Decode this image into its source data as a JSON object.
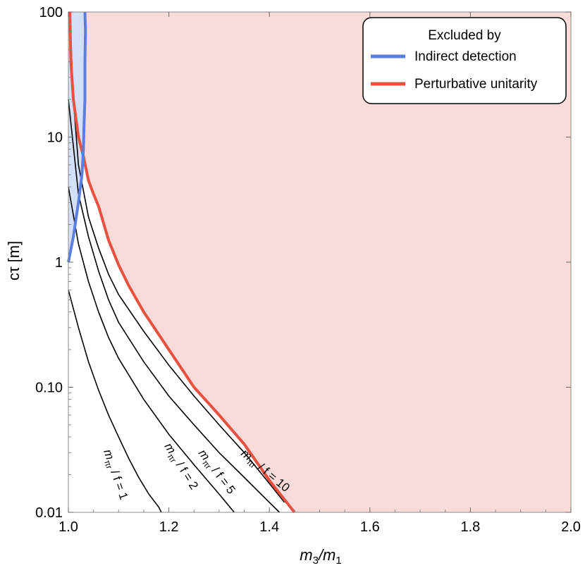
{
  "chart_data": {
    "type": "line",
    "xlabel_main": "m",
    "xlabel_sub1": "3",
    "xlabel_sep": "/m",
    "xlabel_sub2": "1",
    "ylabel": "cτ [m]",
    "x_scale": "linear",
    "y_scale": "log",
    "xlim": [
      1.0,
      2.0
    ],
    "ylim": [
      0.01,
      100
    ],
    "x_ticks": [
      1.0,
      1.2,
      1.4,
      1.6,
      1.8,
      2.0
    ],
    "x_tick_labels": [
      "1.0",
      "1.2",
      "1.4",
      "1.6",
      "1.8",
      "2.0"
    ],
    "y_ticks": [
      0.01,
      0.1,
      1,
      10,
      100
    ],
    "y_tick_labels": [
      "0.01",
      "0.10",
      "1",
      "10",
      "100"
    ],
    "grid": false,
    "legend": {
      "position": "top-right",
      "title": "Excluded by",
      "entries": [
        {
          "label": "Indirect detection",
          "color": "#5b7fe0"
        },
        {
          "label": "Perturbative unitarity",
          "color": "#e8503f"
        }
      ]
    },
    "regions": [
      {
        "excluded_by": "Perturbative unitarity",
        "fill": "#f9dbd9",
        "stroke": "#e8503f",
        "boundary": [
          [
            1.003,
            100
          ],
          [
            1.005,
            40
          ],
          [
            1.01,
            20
          ],
          [
            1.02,
            10
          ],
          [
            1.03,
            7
          ],
          [
            1.04,
            4.5
          ],
          [
            1.05,
            3.5
          ],
          [
            1.06,
            2.8
          ],
          [
            1.08,
            1.5
          ],
          [
            1.1,
            0.95
          ],
          [
            1.12,
            0.65
          ],
          [
            1.15,
            0.4
          ],
          [
            1.2,
            0.2
          ],
          [
            1.25,
            0.1
          ],
          [
            1.3,
            0.06
          ],
          [
            1.35,
            0.035
          ],
          [
            1.4,
            0.018
          ],
          [
            1.45,
            0.01
          ]
        ]
      },
      {
        "excluded_by": "Indirect detection",
        "fill": "#d4e0f8",
        "stroke": "#5b7fe0",
        "boundary": [
          [
            1.0,
            1.0
          ],
          [
            1.01,
            1.6
          ],
          [
            1.02,
            3.0
          ],
          [
            1.027,
            5.0
          ],
          [
            1.03,
            8.0
          ],
          [
            1.031,
            12
          ],
          [
            1.033,
            20
          ],
          [
            1.033,
            40
          ],
          [
            1.034,
            70
          ],
          [
            1.033,
            100
          ]
        ]
      }
    ],
    "series": [
      {
        "label_prefix": "m",
        "label_sub": "πr",
        "label_suffix": "/ f = 1",
        "color": "#000000",
        "x": [
          1.0,
          1.02,
          1.04,
          1.06,
          1.08,
          1.1,
          1.12,
          1.14,
          1.16,
          1.18,
          1.185
        ],
        "y": [
          0.6,
          0.3,
          0.16,
          0.095,
          0.06,
          0.04,
          0.027,
          0.019,
          0.014,
          0.011,
          0.01
        ]
      },
      {
        "label_prefix": "m",
        "label_sub": "πr",
        "label_suffix": "/ f = 2",
        "color": "#000000",
        "x": [
          1.0,
          1.02,
          1.04,
          1.06,
          1.08,
          1.1,
          1.15,
          1.2,
          1.25,
          1.3,
          1.33
        ],
        "y": [
          4.0,
          1.4,
          0.7,
          0.4,
          0.25,
          0.17,
          0.08,
          0.042,
          0.024,
          0.014,
          0.01
        ]
      },
      {
        "label_prefix": "m",
        "label_sub": "πr",
        "label_suffix": "/ f = 5",
        "color": "#000000",
        "x": [
          1.0,
          1.02,
          1.04,
          1.06,
          1.08,
          1.1,
          1.15,
          1.2,
          1.25,
          1.3,
          1.35,
          1.4,
          1.42
        ],
        "y": [
          20.0,
          3.5,
          1.6,
          0.85,
          0.5,
          0.33,
          0.16,
          0.085,
          0.05,
          0.03,
          0.019,
          0.012,
          0.01
        ]
      },
      {
        "label_prefix": "m",
        "label_sub": "πr",
        "label_suffix": "/ f = 10",
        "color": "#000000",
        "x": [
          1.003,
          1.01,
          1.02,
          1.04,
          1.06,
          1.08,
          1.1,
          1.15,
          1.2,
          1.25,
          1.3,
          1.35,
          1.4,
          1.43
        ],
        "y": [
          100,
          20,
          6.0,
          2.3,
          1.3,
          0.8,
          0.55,
          0.28,
          0.15,
          0.085,
          0.05,
          0.03,
          0.017,
          0.012
        ]
      }
    ]
  }
}
